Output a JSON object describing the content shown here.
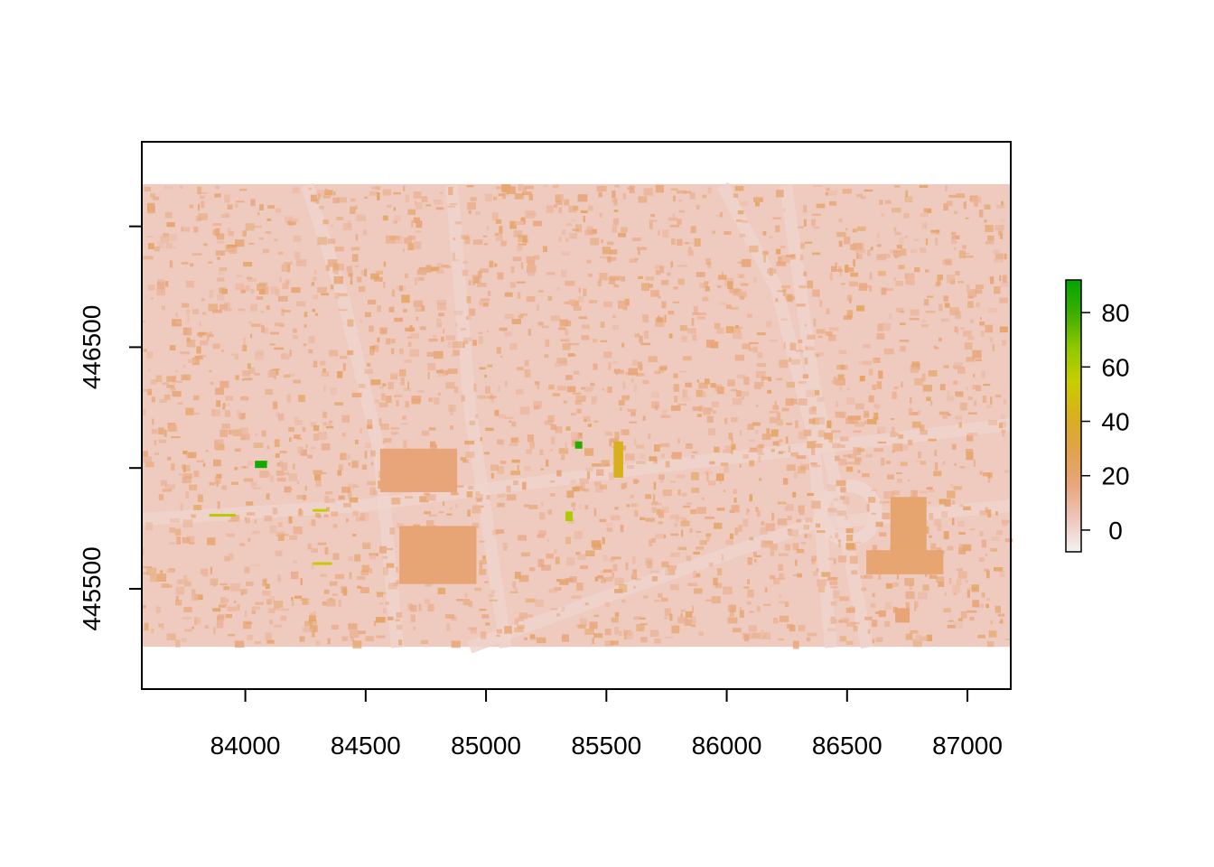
{
  "chart_data": {
    "type": "heatmap",
    "title": "",
    "xlabel": "",
    "ylabel": "",
    "xlim": [
      83570,
      87180
    ],
    "ylim": [
      445085,
      447350
    ],
    "raster_extent": {
      "x": [
        83570,
        87180
      ],
      "y": [
        445260,
        447175
      ]
    },
    "x_ticks": [
      84000,
      84500,
      85000,
      85500,
      86000,
      86500,
      87000
    ],
    "x_tick_labels": [
      "84000",
      "84500",
      "85000",
      "85500",
      "86000",
      "86500",
      "87000"
    ],
    "y_ticks": [
      445500,
      446000,
      446500,
      447000
    ],
    "y_tick_labels": [
      "445500",
      "",
      "446500",
      ""
    ],
    "legend": {
      "position": "right",
      "range": [
        -8,
        92
      ],
      "ticks": [
        0,
        20,
        40,
        60,
        80
      ],
      "tick_labels": [
        "0",
        "20",
        "40",
        "60",
        "80"
      ],
      "colors": [
        "#f2f2f2",
        "#eec5b8",
        "#e8a57a",
        "#e0a34a",
        "#d8b01e",
        "#c9cd00",
        "#8fc800",
        "#3fae00",
        "#00a600"
      ]
    },
    "features": [
      {
        "kind": "large-building",
        "x": [
          84640,
          84960
        ],
        "y": [
          445520,
          445760
        ],
        "value": 18
      },
      {
        "kind": "large-building",
        "x": [
          84560,
          84880
        ],
        "y": [
          445900,
          446080
        ],
        "value": 17
      },
      {
        "kind": "building",
        "x": [
          86680,
          86830
        ],
        "y": [
          445620,
          445880
        ],
        "value": 20
      },
      {
        "kind": "building",
        "x": [
          86580,
          86900
        ],
        "y": [
          445560,
          445660
        ],
        "value": 19
      },
      {
        "kind": "building",
        "x": [
          86700,
          86760
        ],
        "y": [
          445360,
          445420
        ],
        "value": 18
      },
      {
        "kind": "tall-building",
        "x": [
          84040,
          84090
        ],
        "y": [
          446000,
          446030
        ],
        "value": 88
      },
      {
        "kind": "tall-building",
        "x": [
          85370,
          85400
        ],
        "y": [
          446080,
          446110
        ],
        "value": 84
      },
      {
        "kind": "tree-row",
        "x": [
          84280,
          84340
        ],
        "y": [
          445820,
          445830
        ],
        "value": 55
      },
      {
        "kind": "tree-row",
        "x": [
          83850,
          83960
        ],
        "y": [
          445800,
          445810
        ],
        "value": 58
      },
      {
        "kind": "tree-row",
        "x": [
          84280,
          84360
        ],
        "y": [
          445600,
          445610
        ],
        "value": 52
      },
      {
        "kind": "tree-row",
        "x": [
          85530,
          85570
        ],
        "y": [
          445960,
          446110
        ],
        "value": 42
      },
      {
        "kind": "tree-row",
        "x": [
          85330,
          85360
        ],
        "y": [
          445780,
          445820
        ],
        "value": 60
      }
    ]
  }
}
